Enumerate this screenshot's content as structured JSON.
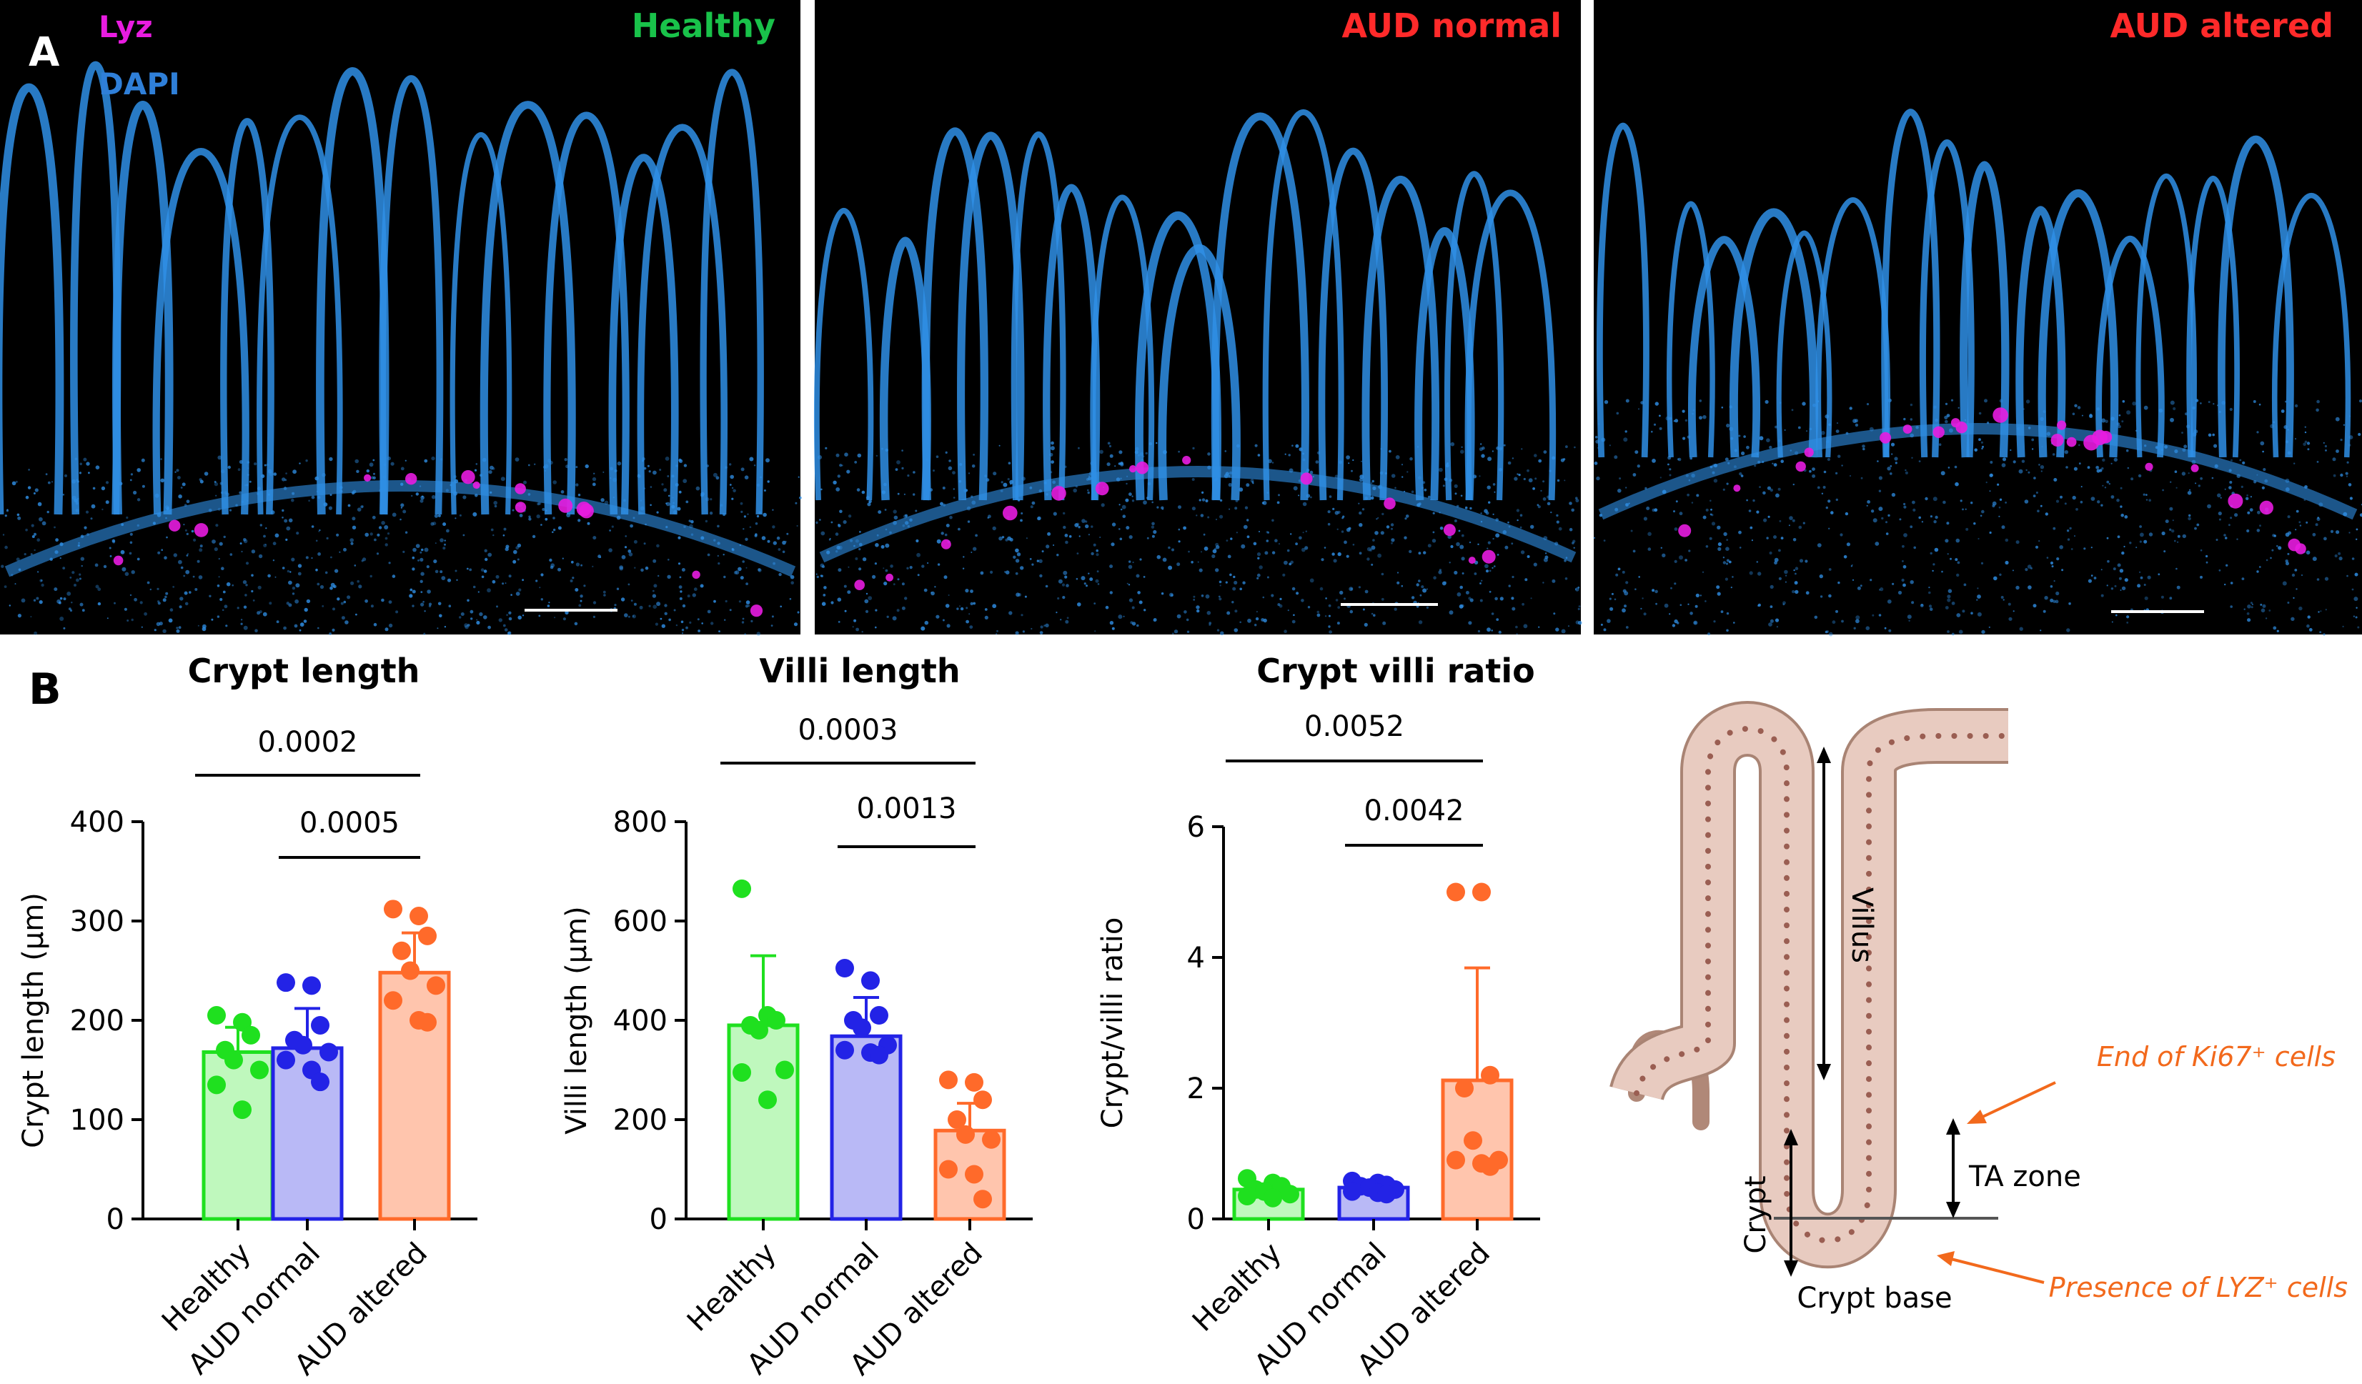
{
  "panel_letters": {
    "a": "A",
    "b": "B"
  },
  "micro_panels": [
    {
      "label": "Healthy",
      "label_color": "#19c24a",
      "legend": [
        {
          "text": "Lyz",
          "color": "#e81ce0"
        },
        {
          "text": "DAPI",
          "color": "#2f7fd8"
        }
      ]
    },
    {
      "label": "AUD normal",
      "label_color": "#ff2a2a",
      "legend": []
    },
    {
      "label": "AUD altered",
      "label_color": "#ff2a2a",
      "legend": []
    }
  ],
  "colors": {
    "healthy": "#1fe01f",
    "healthy_fill": "#bff8bd",
    "aud_normal": "#2323e6",
    "aud_normal_fill": "#b9b9f6",
    "aud_altered": "#ff6a2a",
    "aud_altered_fill": "#ffc5ad",
    "dapi": "#2f8fe6",
    "lyz": "#e81ce0",
    "diagram_annotation": "#f2691c"
  },
  "chart_data": [
    {
      "type": "bar",
      "title": "Crypt length",
      "ylabel": "Crypt length (μm)",
      "categories": [
        "Healthy",
        "AUD normal",
        "AUD altered"
      ],
      "values": [
        168,
        172,
        248
      ],
      "errors": [
        25,
        40,
        40
      ],
      "points": [
        [
          205,
          198,
          185,
          170,
          160,
          150,
          135,
          110
        ],
        [
          238,
          235,
          195,
          180,
          175,
          168,
          160,
          150,
          138
        ],
        [
          312,
          305,
          285,
          270,
          250,
          235,
          220,
          200,
          198
        ]
      ],
      "yticks": [
        0,
        100,
        200,
        300,
        400
      ],
      "ylim": [
        0,
        400
      ],
      "significance": [
        {
          "label": "0.0002",
          "from": 0,
          "to": 2
        },
        {
          "label": "0.0005",
          "from": 1,
          "to": 2
        }
      ]
    },
    {
      "type": "bar",
      "title": "Villi length",
      "ylabel": "Villi length (μm)",
      "categories": [
        "Healthy",
        "AUD normal",
        "AUD altered"
      ],
      "values": [
        390,
        368,
        178
      ],
      "errors": [
        140,
        78,
        55
      ],
      "points": [
        [
          665,
          410,
          400,
          390,
          380,
          300,
          295,
          240
        ],
        [
          505,
          480,
          410,
          400,
          385,
          350,
          340,
          335,
          330
        ],
        [
          280,
          275,
          240,
          200,
          170,
          160,
          100,
          90,
          40
        ]
      ],
      "yticks": [
        0,
        200,
        400,
        600,
        800
      ],
      "ylim": [
        0,
        800
      ],
      "significance": [
        {
          "label": "0.0003",
          "from": 0,
          "to": 2
        },
        {
          "label": "0.0013",
          "from": 1,
          "to": 2
        }
      ]
    },
    {
      "type": "bar",
      "title": "Crypt villi ratio",
      "ylabel": "Crypt/villi ratio",
      "categories": [
        "Healthy",
        "AUD normal",
        "AUD altered"
      ],
      "values": [
        0.45,
        0.48,
        2.12
      ],
      "errors": [
        0.08,
        0.07,
        1.72
      ],
      "points": [
        [
          0.62,
          0.55,
          0.5,
          0.45,
          0.42,
          0.38,
          0.35,
          0.32
        ],
        [
          0.58,
          0.55,
          0.52,
          0.5,
          0.48,
          0.45,
          0.42,
          0.4,
          0.38
        ],
        [
          5.0,
          5.0,
          2.2,
          2.0,
          1.2,
          0.9,
          0.9,
          0.85,
          0.8
        ]
      ],
      "yticks": [
        0,
        2,
        4,
        6
      ],
      "ylim": [
        0,
        6
      ],
      "significance": [
        {
          "label": "0.0052",
          "from": 0,
          "to": 2
        },
        {
          "label": "0.0042",
          "from": 1,
          "to": 2
        }
      ]
    }
  ],
  "diagram": {
    "villus": "Villus",
    "ta_zone": "TA zone",
    "crypt": "Crypt",
    "crypt_base": "Crypt base",
    "end_ki67": "End of Ki67⁺ cells",
    "presence_lyz": "Presence of LYZ⁺ cells"
  }
}
